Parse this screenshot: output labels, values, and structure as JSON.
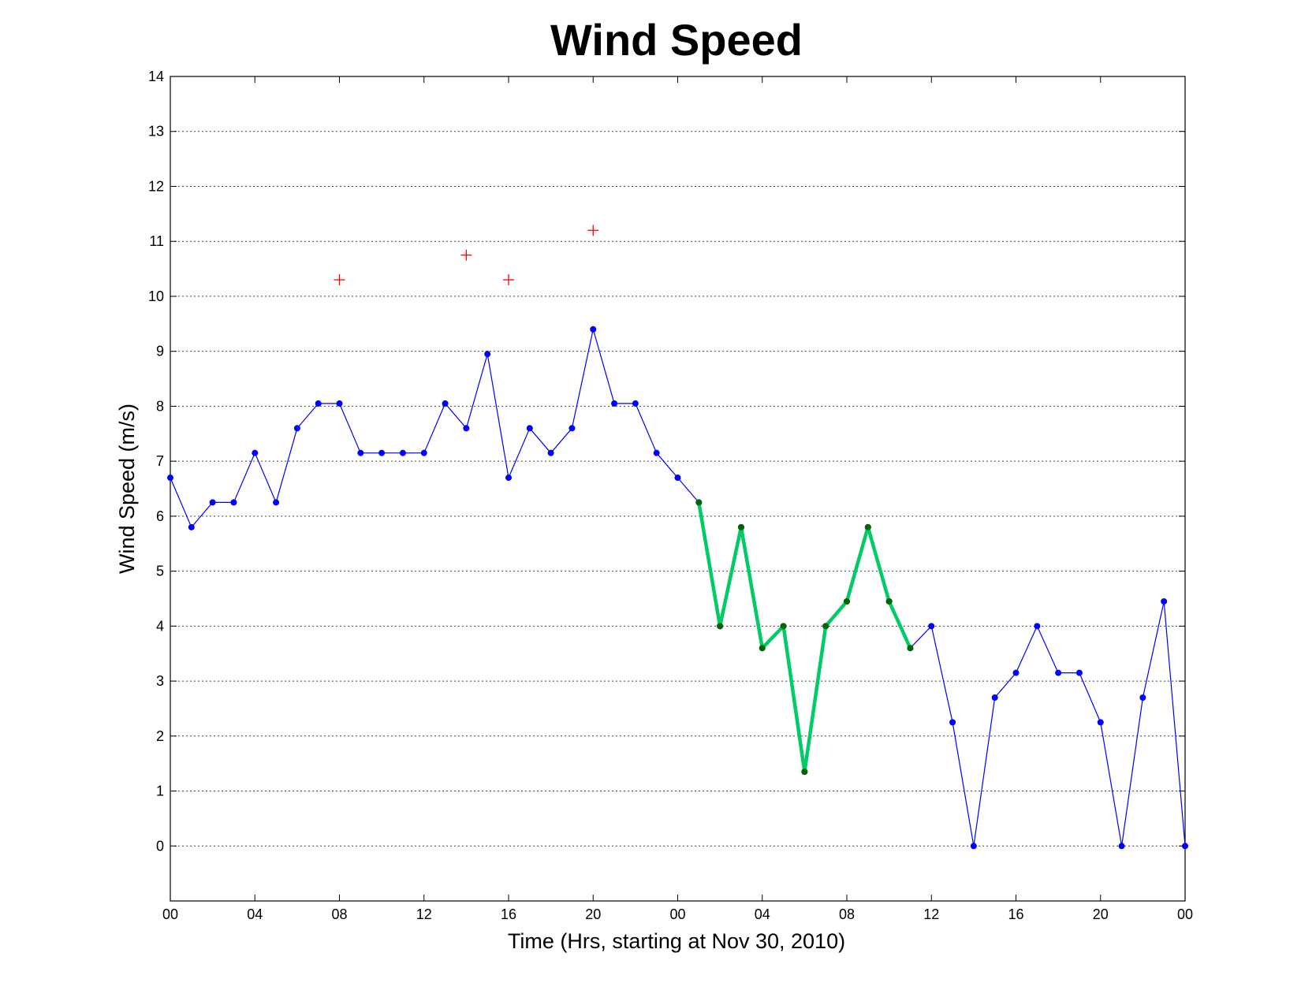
{
  "chart_data": {
    "type": "line",
    "title": "Wind Speed",
    "xlabel": "Time (Hrs, starting at Nov 30, 2010)",
    "ylabel": "Wind Speed (m/s)",
    "xlim": [
      0,
      48
    ],
    "ylim": [
      -1,
      14
    ],
    "yticks": [
      0,
      1,
      2,
      3,
      4,
      5,
      6,
      7,
      8,
      9,
      10,
      11,
      12,
      13,
      14
    ],
    "xticks": [
      0,
      4,
      8,
      12,
      16,
      20,
      24,
      28,
      32,
      36,
      40,
      44,
      48
    ],
    "xtick_labels": [
      "00",
      "04",
      "08",
      "12",
      "16",
      "20",
      "00",
      "04",
      "08",
      "12",
      "16",
      "20",
      "00"
    ],
    "grid": "horizontal dotted",
    "series": [
      {
        "color": "#0000ff",
        "marker": "dot",
        "x": [
          0,
          1,
          2,
          3,
          4,
          5,
          6,
          7,
          8,
          9,
          10,
          11,
          12,
          13,
          14,
          15,
          16,
          17,
          18,
          19,
          20,
          21,
          22,
          23,
          24,
          25,
          26,
          27,
          28,
          29,
          30,
          31,
          32,
          33,
          34,
          35,
          36,
          37,
          38,
          39,
          40,
          41,
          42,
          43,
          44,
          45,
          46,
          47,
          48
        ],
        "values": [
          6.7,
          5.8,
          6.25,
          6.25,
          7.15,
          6.25,
          7.6,
          8.05,
          8.05,
          7.15,
          7.15,
          7.15,
          7.15,
          8.05,
          7.6,
          8.95,
          6.7,
          7.6,
          7.15,
          7.6,
          9.4,
          8.05,
          8.05,
          7.15,
          6.7,
          6.25,
          4.0,
          5.8,
          3.6,
          4.0,
          1.35,
          4.0,
          4.45,
          5.8,
          4.45,
          3.6,
          4.0,
          2.25,
          0,
          2.7,
          3.15,
          4.0,
          3.15,
          3.15,
          2.25,
          0,
          2.7,
          4.45,
          0
        ]
      },
      {
        "color": "#00cc66",
        "marker_color": "#006600",
        "marker": "dot",
        "x": [
          25,
          26,
          27,
          28,
          29,
          30,
          31,
          32,
          33,
          34,
          35
        ],
        "values": [
          6.25,
          4.0,
          5.8,
          3.6,
          4.0,
          1.35,
          4.0,
          4.45,
          5.8,
          4.45,
          3.6
        ]
      },
      {
        "color": "#ff0000",
        "marker": "plus",
        "line": false,
        "x": [
          8,
          14,
          16,
          20
        ],
        "values": [
          10.3,
          10.75,
          10.3,
          11.2
        ]
      }
    ]
  }
}
